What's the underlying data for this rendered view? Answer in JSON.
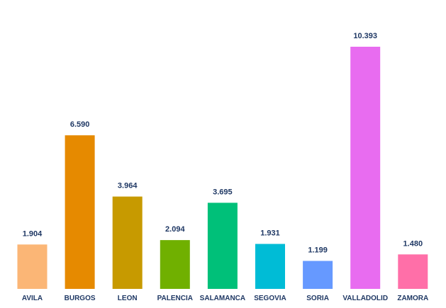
{
  "chart_data": {
    "type": "bar",
    "title": "",
    "xlabel": "",
    "ylabel": "",
    "ylim": [
      0,
      10.393
    ],
    "grid": false,
    "legend": "none",
    "categories": [
      "AVILA",
      "BURGOS",
      "LEON",
      "PALENCIA",
      "SALAMANCA",
      "SEGOVIA",
      "SORIA",
      "VALLADOLID",
      "ZAMORA"
    ],
    "values": [
      1.904,
      6.59,
      3.964,
      2.094,
      3.695,
      1.931,
      1.199,
      10.393,
      1.48
    ],
    "value_labels": [
      "1.904",
      "6.590",
      "3.964",
      "2.094",
      "3.695",
      "1.931",
      "1.199",
      "10.393",
      "1.480"
    ],
    "colors": [
      "#FBB676",
      "#E68A00",
      "#C79A00",
      "#70B000",
      "#00C079",
      "#00BCD6",
      "#6699FF",
      "#E86CF0",
      "#FF6FA8"
    ],
    "label_color": "#1F3864"
  }
}
